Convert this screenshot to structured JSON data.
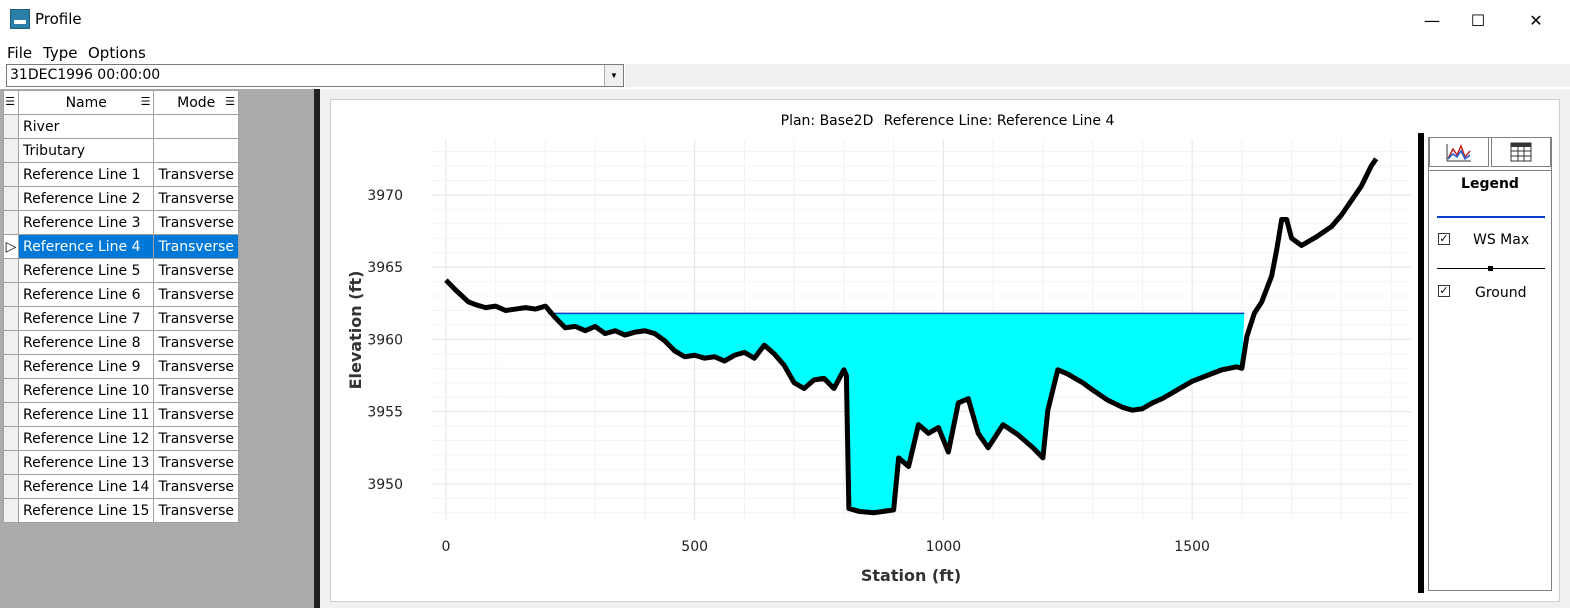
{
  "window": {
    "title": "Profile",
    "minimize": "—",
    "maximize": "☐",
    "close": "✕"
  },
  "menu": {
    "file": "File",
    "type": "Type",
    "options": "Options"
  },
  "time_selector": {
    "value": "31DEC1996 00:00:00"
  },
  "grid": {
    "headers": {
      "name": "Name",
      "mode": "Mode"
    },
    "rows": [
      {
        "name": "River",
        "mode": ""
      },
      {
        "name": "Tributary",
        "mode": ""
      },
      {
        "name": "Reference Line 1",
        "mode": "Transverse"
      },
      {
        "name": "Reference Line 2",
        "mode": "Transverse"
      },
      {
        "name": "Reference Line 3",
        "mode": "Transverse"
      },
      {
        "name": "Reference Line 4",
        "mode": "Transverse"
      },
      {
        "name": "Reference Line 5",
        "mode": "Transverse"
      },
      {
        "name": "Reference Line 6",
        "mode": "Transverse"
      },
      {
        "name": "Reference Line 7",
        "mode": "Transverse"
      },
      {
        "name": "Reference Line 8",
        "mode": "Transverse"
      },
      {
        "name": "Reference Line 9",
        "mode": "Transverse"
      },
      {
        "name": "Reference Line 10",
        "mode": "Transverse"
      },
      {
        "name": "Reference Line 11",
        "mode": "Transverse"
      },
      {
        "name": "Reference Line 12",
        "mode": "Transverse"
      },
      {
        "name": "Reference Line 13",
        "mode": "Transverse"
      },
      {
        "name": "Reference Line 14",
        "mode": "Transverse"
      },
      {
        "name": "Reference Line 15",
        "mode": "Transverse"
      }
    ],
    "selected_index": 5
  },
  "legend": {
    "title": "Legend",
    "items": [
      {
        "label": "WS Max",
        "checked": true,
        "color": "#0a3cc8"
      },
      {
        "label": "Ground",
        "checked": true,
        "color": "#000000"
      }
    ]
  },
  "chart_data": {
    "type": "area",
    "plan_label": "Plan: Base2D",
    "refline_label": "Reference Line: Reference Line 4",
    "xlabel": "Station (ft)",
    "ylabel": "Elevation (ft)",
    "xlim": [
      -30,
      1940
    ],
    "ylim": [
      3947.5,
      3973.8
    ],
    "xticks": [
      0,
      500,
      1000,
      1500
    ],
    "yticks": [
      3950,
      3955,
      3960,
      3965,
      3970
    ],
    "grid": true,
    "ws_max": {
      "elevation": 3961.8,
      "x_start": 205,
      "x_end": 1605,
      "color": "#0a3cc8",
      "fill": "#00ffff"
    },
    "ground": {
      "x": [
        0,
        20,
        45,
        60,
        80,
        100,
        120,
        140,
        160,
        180,
        200,
        220,
        240,
        260,
        280,
        300,
        320,
        340,
        360,
        380,
        400,
        420,
        440,
        460,
        480,
        500,
        520,
        540,
        560,
        580,
        600,
        620,
        640,
        660,
        680,
        700,
        720,
        740,
        760,
        780,
        800,
        805,
        810,
        830,
        860,
        900,
        910,
        930,
        950,
        970,
        990,
        1010,
        1030,
        1050,
        1070,
        1090,
        1120,
        1150,
        1180,
        1200,
        1210,
        1230,
        1250,
        1280,
        1300,
        1330,
        1360,
        1380,
        1400,
        1420,
        1440,
        1460,
        1480,
        1500,
        1530,
        1560,
        1590,
        1600,
        1610,
        1625,
        1640,
        1660,
        1670,
        1680,
        1690,
        1700,
        1720,
        1750,
        1780,
        1800,
        1820,
        1840,
        1860,
        1870
      ],
      "y": [
        3964.1,
        3963.4,
        3962.6,
        3962.4,
        3962.2,
        3962.3,
        3962.0,
        3962.1,
        3962.2,
        3962.1,
        3962.3,
        3961.5,
        3960.8,
        3960.9,
        3960.6,
        3960.9,
        3960.4,
        3960.6,
        3960.3,
        3960.5,
        3960.6,
        3960.4,
        3959.9,
        3959.2,
        3958.8,
        3958.9,
        3958.7,
        3958.8,
        3958.5,
        3958.9,
        3959.1,
        3958.7,
        3959.6,
        3959.0,
        3958.2,
        3957.0,
        3956.6,
        3957.2,
        3957.3,
        3956.6,
        3957.9,
        3957.5,
        3948.3,
        3948.1,
        3948.0,
        3948.2,
        3951.8,
        3951.2,
        3954.1,
        3953.5,
        3953.9,
        3952.2,
        3955.6,
        3955.9,
        3953.5,
        3952.5,
        3954.1,
        3953.4,
        3952.5,
        3951.8,
        3955.1,
        3957.9,
        3957.6,
        3957.0,
        3956.5,
        3955.8,
        3955.3,
        3955.1,
        3955.2,
        3955.6,
        3955.9,
        3956.3,
        3956.7,
        3957.1,
        3957.5,
        3957.9,
        3958.1,
        3958.0,
        3960.2,
        3961.8,
        3962.6,
        3964.4,
        3966.2,
        3968.3,
        3968.3,
        3967.0,
        3966.5,
        3967.1,
        3967.8,
        3968.6,
        3969.6,
        3970.6,
        3972.0,
        3972.5
      ]
    }
  }
}
